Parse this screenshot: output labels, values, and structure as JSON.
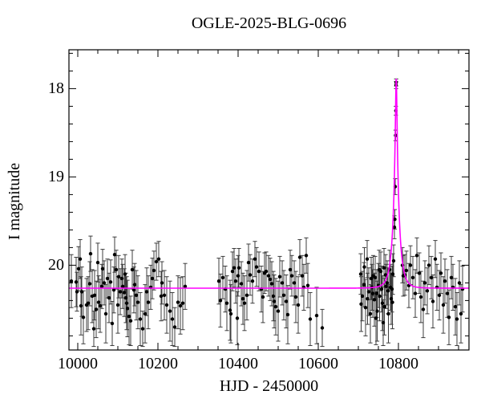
{
  "figure": {
    "title": "OGLE-2025-BLG-0696",
    "xlabel": "HJD - 2450000",
    "ylabel": "I magnitude"
  },
  "colors": {
    "background": "#ffffff",
    "frame": "#000000",
    "point": "#000000",
    "error_bar": "#3d3d3d",
    "model_curve": "#ff00ff",
    "text": "#000000"
  },
  "chart_data": {
    "type": "scatter",
    "title": "OGLE-2025-BLG-0696",
    "xlabel": "HJD - 2450000",
    "ylabel": "I magnitude",
    "y_axis_inverted": true,
    "grid": false,
    "legend": "none",
    "x_range": [
      9978,
      10976
    ],
    "y_range_mag": [
      17.56,
      20.96
    ],
    "x_ticks_major": [
      10000,
      10200,
      10400,
      10600,
      10800
    ],
    "x_tick_minor_step": 50,
    "y_ticks_major": [
      18,
      19,
      20
    ],
    "y_tick_minor_step": 0.2,
    "model": {
      "kind": "paczynski-microlensing",
      "t0": 10794.5,
      "tE": 15,
      "u0": 0.113,
      "baseline_mag": 20.26,
      "peak_mag": 17.9
    },
    "points_format": [
      "hjd_minus_2450000",
      "I_mag",
      "err_mag"
    ],
    "points": [
      [
        9984,
        20.18,
        0.3
      ],
      [
        9996,
        20.19,
        0.28
      ],
      [
        9998,
        20.3,
        0.22
      ],
      [
        10002,
        20.04,
        0.25
      ],
      [
        10006,
        19.93,
        0.22
      ],
      [
        10008,
        20.46,
        0.33
      ],
      [
        10010,
        20.3,
        0.28
      ],
      [
        10014,
        20.59,
        0.3
      ],
      [
        10022,
        20.45,
        0.3
      ],
      [
        10026,
        20.43,
        0.3
      ],
      [
        10030,
        20.21,
        0.25
      ],
      [
        10032,
        19.87,
        0.2
      ],
      [
        10036,
        20.35,
        0.3
      ],
      [
        10040,
        20.72,
        0.2
      ],
      [
        10042,
        20.34,
        0.28
      ],
      [
        10046,
        20.5,
        0.32
      ],
      [
        10050,
        19.97,
        0.22
      ],
      [
        10052,
        20.42,
        0.3
      ],
      [
        10056,
        20.46,
        0.3
      ],
      [
        10060,
        20.24,
        0.25
      ],
      [
        10062,
        20.04,
        0.22
      ],
      [
        10066,
        20.2,
        0.25
      ],
      [
        10070,
        20.55,
        0.33
      ],
      [
        10074,
        20.15,
        0.22
      ],
      [
        10078,
        20.37,
        0.28
      ],
      [
        10082,
        20.19,
        0.25
      ],
      [
        10086,
        20.66,
        0.25
      ],
      [
        10090,
        20.28,
        0.26
      ],
      [
        10092,
        19.88,
        0.2
      ],
      [
        10096,
        20.05,
        0.22
      ],
      [
        10100,
        20.45,
        0.32
      ],
      [
        10102,
        20.13,
        0.24
      ],
      [
        10106,
        20.3,
        0.26
      ],
      [
        10110,
        20.15,
        0.22
      ],
      [
        10112,
        20.24,
        0.25
      ],
      [
        10116,
        20.31,
        0.27
      ],
      [
        10118,
        20.1,
        0.22
      ],
      [
        10120,
        20.37,
        0.28
      ],
      [
        10122,
        20.43,
        0.3
      ],
      [
        10124,
        20.49,
        0.32
      ],
      [
        10128,
        20.58,
        0.32
      ],
      [
        10132,
        20.63,
        0.28
      ],
      [
        10136,
        20.05,
        0.22
      ],
      [
        10140,
        20.28,
        0.26
      ],
      [
        10142,
        20.22,
        0.24
      ],
      [
        10146,
        20.34,
        0.28
      ],
      [
        10150,
        20.42,
        0.3
      ],
      [
        10156,
        20.61,
        0.3
      ],
      [
        10162,
        20.72,
        0.2
      ],
      [
        10168,
        20.55,
        0.33
      ],
      [
        10172,
        20.3,
        0.27
      ],
      [
        10176,
        20.42,
        0.3
      ],
      [
        10182,
        20.25,
        0.25
      ],
      [
        10186,
        20.15,
        0.23
      ],
      [
        10190,
        20.06,
        0.22
      ],
      [
        10196,
        19.96,
        0.21
      ],
      [
        10202,
        19.93,
        0.2
      ],
      [
        10208,
        20.35,
        0.28
      ],
      [
        10210,
        20.2,
        0.24
      ],
      [
        10216,
        20.34,
        0.28
      ],
      [
        10222,
        20.45,
        0.32
      ],
      [
        10230,
        20.52,
        0.34
      ],
      [
        10236,
        20.61,
        0.3
      ],
      [
        10242,
        20.7,
        0.22
      ],
      [
        10250,
        20.42,
        0.3
      ],
      [
        10256,
        20.46,
        0.32
      ],
      [
        10262,
        20.43,
        0.3
      ],
      [
        10268,
        20.24,
        0.26
      ],
      [
        10352,
        20.18,
        0.26
      ],
      [
        10356,
        20.4,
        0.3
      ],
      [
        10362,
        20.14,
        0.24
      ],
      [
        10368,
        20.27,
        0.26
      ],
      [
        10372,
        20.43,
        0.31
      ],
      [
        10380,
        20.51,
        0.34
      ],
      [
        10382,
        20.55,
        0.33
      ],
      [
        10386,
        20.07,
        0.22
      ],
      [
        10390,
        20.03,
        0.22
      ],
      [
        10394,
        20.18,
        0.25
      ],
      [
        10398,
        20.6,
        0.3
      ],
      [
        10400,
        20.12,
        0.23
      ],
      [
        10402,
        20.03,
        0.22
      ],
      [
        10408,
        20.21,
        0.25
      ],
      [
        10412,
        20.38,
        0.29
      ],
      [
        10416,
        20.43,
        0.31
      ],
      [
        10422,
        20.34,
        0.28
      ],
      [
        10426,
        19.97,
        0.21
      ],
      [
        10430,
        20.11,
        0.23
      ],
      [
        10436,
        20.18,
        0.25
      ],
      [
        10442,
        19.93,
        0.2
      ],
      [
        10446,
        20.02,
        0.22
      ],
      [
        10452,
        20.07,
        0.22
      ],
      [
        10458,
        20.27,
        0.26
      ],
      [
        10462,
        20.36,
        0.29
      ],
      [
        10466,
        20.09,
        0.23
      ],
      [
        10470,
        20.07,
        0.22
      ],
      [
        10476,
        20.12,
        0.23
      ],
      [
        10480,
        20.16,
        0.24
      ],
      [
        10484,
        20.21,
        0.25
      ],
      [
        10488,
        20.35,
        0.28
      ],
      [
        10490,
        20.41,
        0.3
      ],
      [
        10494,
        20.47,
        0.32
      ],
      [
        10500,
        20.52,
        0.34
      ],
      [
        10504,
        20.13,
        0.23
      ],
      [
        10510,
        20.2,
        0.25
      ],
      [
        10514,
        20.34,
        0.28
      ],
      [
        10520,
        20.41,
        0.3
      ],
      [
        10524,
        20.56,
        0.33
      ],
      [
        10530,
        20.05,
        0.22
      ],
      [
        10534,
        20.12,
        0.23
      ],
      [
        10540,
        20.2,
        0.25
      ],
      [
        10544,
        20.36,
        0.29
      ],
      [
        10550,
        20.45,
        0.32
      ],
      [
        10554,
        19.91,
        0.2
      ],
      [
        10560,
        20.12,
        0.23
      ],
      [
        10564,
        20.25,
        0.26
      ],
      [
        10570,
        19.89,
        0.2
      ],
      [
        10574,
        20.23,
        0.25
      ],
      [
        10580,
        20.61,
        0.3
      ],
      [
        10596,
        20.57,
        0.32
      ],
      [
        10610,
        20.71,
        0.21
      ],
      [
        10706,
        20.1,
        0.23
      ],
      [
        10707,
        20.44,
        0.31
      ],
      [
        10710,
        20.35,
        0.28
      ],
      [
        10714,
        20.22,
        0.25
      ],
      [
        10715,
        20.02,
        0.22
      ],
      [
        10718,
        20.48,
        0.32
      ],
      [
        10722,
        19.93,
        0.21
      ],
      [
        10723,
        20.38,
        0.29
      ],
      [
        10726,
        20.3,
        0.27
      ],
      [
        10730,
        20.55,
        0.33
      ],
      [
        10732,
        20.15,
        0.24
      ],
      [
        10734,
        20.25,
        0.26
      ],
      [
        10736,
        20.32,
        0.27
      ],
      [
        10737,
        20.12,
        0.23
      ],
      [
        10740,
        20.39,
        0.3
      ],
      [
        10742,
        20.14,
        0.24
      ],
      [
        10744,
        20.6,
        0.3
      ],
      [
        10746,
        20.32,
        0.27
      ],
      [
        10747,
        20.52,
        0.34
      ],
      [
        10750,
        20.23,
        0.25
      ],
      [
        10752,
        20.05,
        0.22
      ],
      [
        10753,
        20.35,
        0.28
      ],
      [
        10756,
        20.07,
        0.22
      ],
      [
        10758,
        20.27,
        0.26
      ],
      [
        10760,
        20.43,
        0.31
      ],
      [
        10762,
        20.65,
        0.26
      ],
      [
        10764,
        20.03,
        0.22
      ],
      [
        10765,
        20.47,
        0.32
      ],
      [
        10768,
        20.11,
        0.23
      ],
      [
        10769,
        20.24,
        0.25
      ],
      [
        10772,
        20.2,
        0.25
      ],
      [
        10774,
        20.29,
        0.26
      ],
      [
        10775,
        20.55,
        0.33
      ],
      [
        10778,
        20.05,
        0.22
      ],
      [
        10780,
        20.25,
        0.26
      ],
      [
        10782,
        20.38,
        0.29
      ],
      [
        10784,
        20.27,
        0.26
      ],
      [
        10785,
        20.42,
        0.3
      ],
      [
        10786,
        20.1,
        0.23
      ],
      [
        10788,
        19.95,
        0.18
      ],
      [
        10790,
        19.57,
        0.13
      ],
      [
        10791,
        19.48,
        0.11
      ],
      [
        10792,
        19.11,
        0.09
      ],
      [
        10793,
        18.53,
        0.06
      ],
      [
        10793.6,
        18.25,
        0.05
      ],
      [
        10794.1,
        17.96,
        0.04
      ],
      [
        10794.4,
        17.93,
        0.04
      ],
      [
        10810,
        20.0,
        0.2
      ],
      [
        10812,
        20.12,
        0.23
      ],
      [
        10816,
        20.11,
        0.23
      ],
      [
        10820,
        20.06,
        0.22
      ],
      [
        10826,
        20.23,
        0.25
      ],
      [
        10830,
        20.0,
        0.22
      ],
      [
        10836,
        20.14,
        0.24
      ],
      [
        10842,
        20.32,
        0.27
      ],
      [
        10846,
        19.89,
        0.2
      ],
      [
        10852,
        20.09,
        0.23
      ],
      [
        10856,
        20.36,
        0.29
      ],
      [
        10862,
        20.5,
        0.32
      ],
      [
        10866,
        20.2,
        0.25
      ],
      [
        10872,
        20.29,
        0.26
      ],
      [
        10876,
        20.0,
        0.22
      ],
      [
        10882,
        20.14,
        0.24
      ],
      [
        10886,
        20.41,
        0.3
      ],
      [
        10892,
        19.93,
        0.21
      ],
      [
        10896,
        20.25,
        0.26
      ],
      [
        10902,
        20.34,
        0.28
      ],
      [
        10906,
        20.09,
        0.23
      ],
      [
        10912,
        20.45,
        0.32
      ],
      [
        10916,
        20.18,
        0.25
      ],
      [
        10922,
        20.32,
        0.27
      ],
      [
        10926,
        20.59,
        0.31
      ],
      [
        10932,
        20.14,
        0.24
      ],
      [
        10936,
        20.25,
        0.26
      ],
      [
        10942,
        20.47,
        0.32
      ],
      [
        10946,
        20.61,
        0.3
      ],
      [
        10952,
        20.2,
        0.25
      ],
      [
        10956,
        20.55,
        0.33
      ],
      [
        10960,
        20.27,
        0.26
      ]
    ]
  }
}
